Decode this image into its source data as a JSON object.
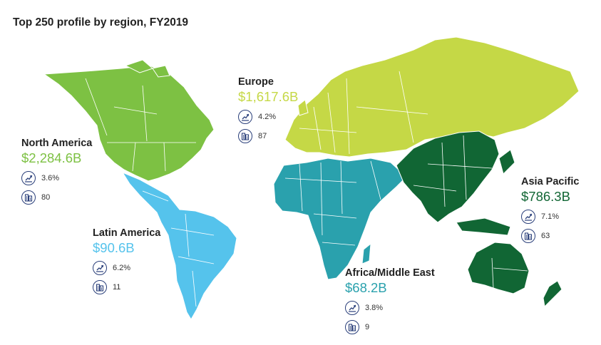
{
  "title": "Top 250 profile by region, FY2019",
  "icons": {
    "growth": "growth-chart-icon",
    "companies": "buildings-icon"
  },
  "regions": {
    "north_america": {
      "name": "North America",
      "value": "$2,284.6B",
      "growth": "3.6%",
      "count": "80",
      "color": "#7dc143"
    },
    "latin_america": {
      "name": "Latin America",
      "value": "$90.6B",
      "growth": "6.2%",
      "count": "11",
      "color": "#55c3ec"
    },
    "europe": {
      "name": "Europe",
      "value": "$1,617.6B",
      "growth": "4.2%",
      "count": "87",
      "color": "#c5d846"
    },
    "africa_middle_east": {
      "name": "Africa/Middle East",
      "value": "$68.2B",
      "growth": "3.8%",
      "count": "9",
      "color": "#2aa1ad"
    },
    "asia_pacific": {
      "name": "Asia Pacific",
      "value": "$786.3B",
      "growth": "7.1%",
      "count": "63",
      "color": "#116634"
    }
  }
}
